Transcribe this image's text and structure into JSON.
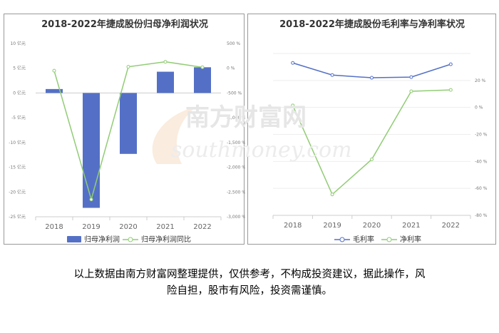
{
  "caption_lines": [
    "以上数据由南方财富网整理提供，仅供参考，不构成投资建议，据此操作，风",
    "险自担，股市有风险，投资需谨慎。"
  ],
  "watermark": {
    "cn": "南方财富网",
    "en": "southmoney.com"
  },
  "chart_data": [
    {
      "type": "bar",
      "title": "2018-2022年捷成股份归母净利润状况",
      "categories": [
        "2018",
        "2019",
        "2020",
        "2021",
        "2022"
      ],
      "series": [
        {
          "name": "归母净利润",
          "kind": "bar",
          "axis": "left",
          "values": [
            0.8,
            -23.2,
            -12.3,
            4.3,
            5.2
          ],
          "color": "#5470c6"
        },
        {
          "name": "归母净利润同比",
          "kind": "line",
          "axis": "right",
          "values": [
            -50,
            -2650,
            30,
            130,
            20
          ],
          "color": "#91cc75"
        }
      ],
      "y_left": {
        "min": -25,
        "max": 10,
        "step": 5,
        "unit": "亿元",
        "tick_labels": [
          "10 亿元",
          "5 亿元",
          "0 亿元",
          "-5 亿元",
          "-10 亿元",
          "-15 亿元",
          "-20 亿元",
          "-25 亿元"
        ]
      },
      "y_right": {
        "min": -3000,
        "max": 500,
        "step": 500,
        "unit": "%",
        "tick_labels": [
          "500 %",
          "0 %",
          "-500 %",
          "-1,000 %",
          "-1,500 %",
          "-2,000 %",
          "-2,500 %",
          "-3,000 %"
        ]
      },
      "legend": {
        "position": "bottom",
        "items": [
          "归母净利润",
          "归母净利润同比"
        ]
      },
      "grid": false
    },
    {
      "type": "line",
      "title": "2018-2022年捷成股份毛利率与净利率状况",
      "categories": [
        "2018",
        "2019",
        "2020",
        "2021",
        "2022"
      ],
      "series": [
        {
          "name": "毛利率",
          "values": [
            33,
            24,
            22,
            22.5,
            32
          ],
          "color": "#5470c6"
        },
        {
          "name": "净利率",
          "values": [
            1.5,
            -64.5,
            -38.5,
            12,
            13
          ],
          "color": "#91cc75"
        }
      ],
      "y_right": {
        "min": -80,
        "max": 40,
        "step": 20,
        "unit": "%",
        "tick_labels": [
          "20 %",
          "0 %",
          "-20 %",
          "-40 %",
          "-60 %",
          "-80 %"
        ]
      },
      "legend": {
        "position": "bottom",
        "items": [
          "毛利率",
          "净利率"
        ]
      },
      "grid": true
    }
  ]
}
